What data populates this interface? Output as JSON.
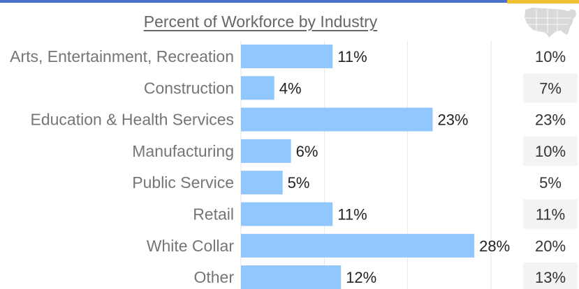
{
  "header": {
    "title": "Percent of Workforce by Industry",
    "map_icon": "usa-map-icon"
  },
  "colors": {
    "top_bar": "#4a73c9",
    "top_accent": "#f0c030",
    "bar": "#91c7fd",
    "us_column_shade": "#f3f3f3",
    "map": "#d9d9d9"
  },
  "chart_data": {
    "type": "bar",
    "orientation": "horizontal",
    "title": "Percent of Workforce by Industry",
    "categories": [
      "Arts, Entertainment, Recreation",
      "Construction",
      "Education & Health Services",
      "Manufacturing",
      "Public Service",
      "Retail",
      "White Collar",
      "Other"
    ],
    "values": [
      11,
      4,
      23,
      6,
      5,
      11,
      28,
      12
    ],
    "value_labels": [
      "11%",
      "4%",
      "23%",
      "6%",
      "5%",
      "11%",
      "28%",
      "12%"
    ],
    "comparison_values": [
      10,
      7,
      23,
      10,
      5,
      11,
      20,
      13
    ],
    "comparison_labels": [
      "10%",
      "7%",
      "23%",
      "10%",
      "5%",
      "11%",
      "20%",
      "13%"
    ],
    "xlim": [
      0,
      30
    ],
    "grid": true,
    "legend": "none"
  }
}
